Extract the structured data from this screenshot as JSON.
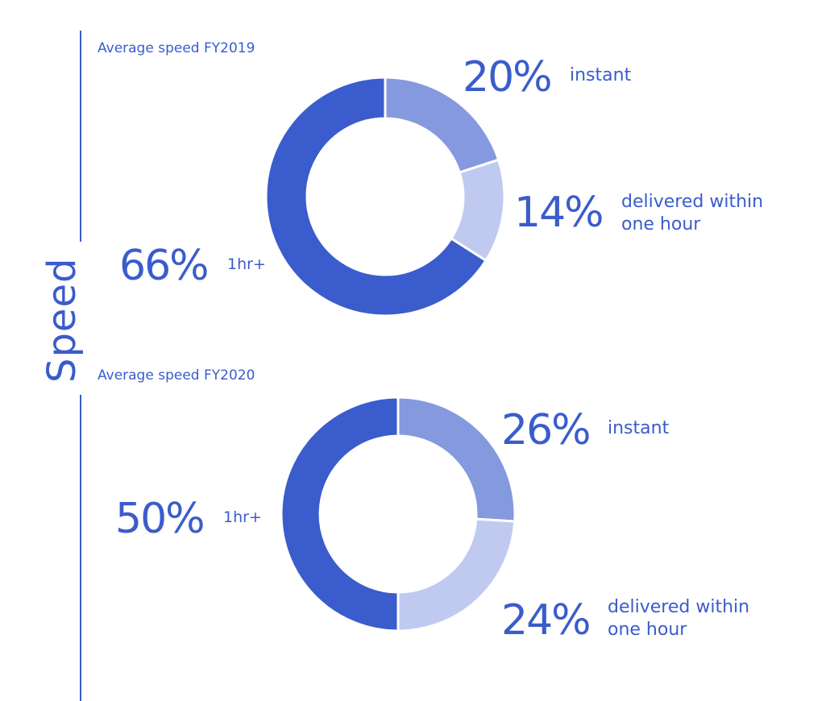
{
  "side_title": "Speed",
  "colors": {
    "text": "#3a5ccc",
    "slice_instant": "#8599df",
    "slice_one_hour": "#c0caf0",
    "slice_1hr_plus": "#3a5ccc"
  },
  "chart_data": [
    {
      "type": "pie",
      "title": "Average speed FY2019",
      "categories": [
        "instant",
        "delivered within one hour",
        "1hr+"
      ],
      "values": [
        20,
        14,
        66
      ],
      "value_labels": [
        "20%",
        "14%",
        "66%"
      ],
      "style": "donut"
    },
    {
      "type": "pie",
      "title": "Average speed FY2020",
      "categories": [
        "instant",
        "delivered within one hour",
        "1hr+"
      ],
      "values": [
        26,
        24,
        50
      ],
      "value_labels": [
        "26%",
        "24%",
        "50%"
      ],
      "style": "donut"
    }
  ]
}
